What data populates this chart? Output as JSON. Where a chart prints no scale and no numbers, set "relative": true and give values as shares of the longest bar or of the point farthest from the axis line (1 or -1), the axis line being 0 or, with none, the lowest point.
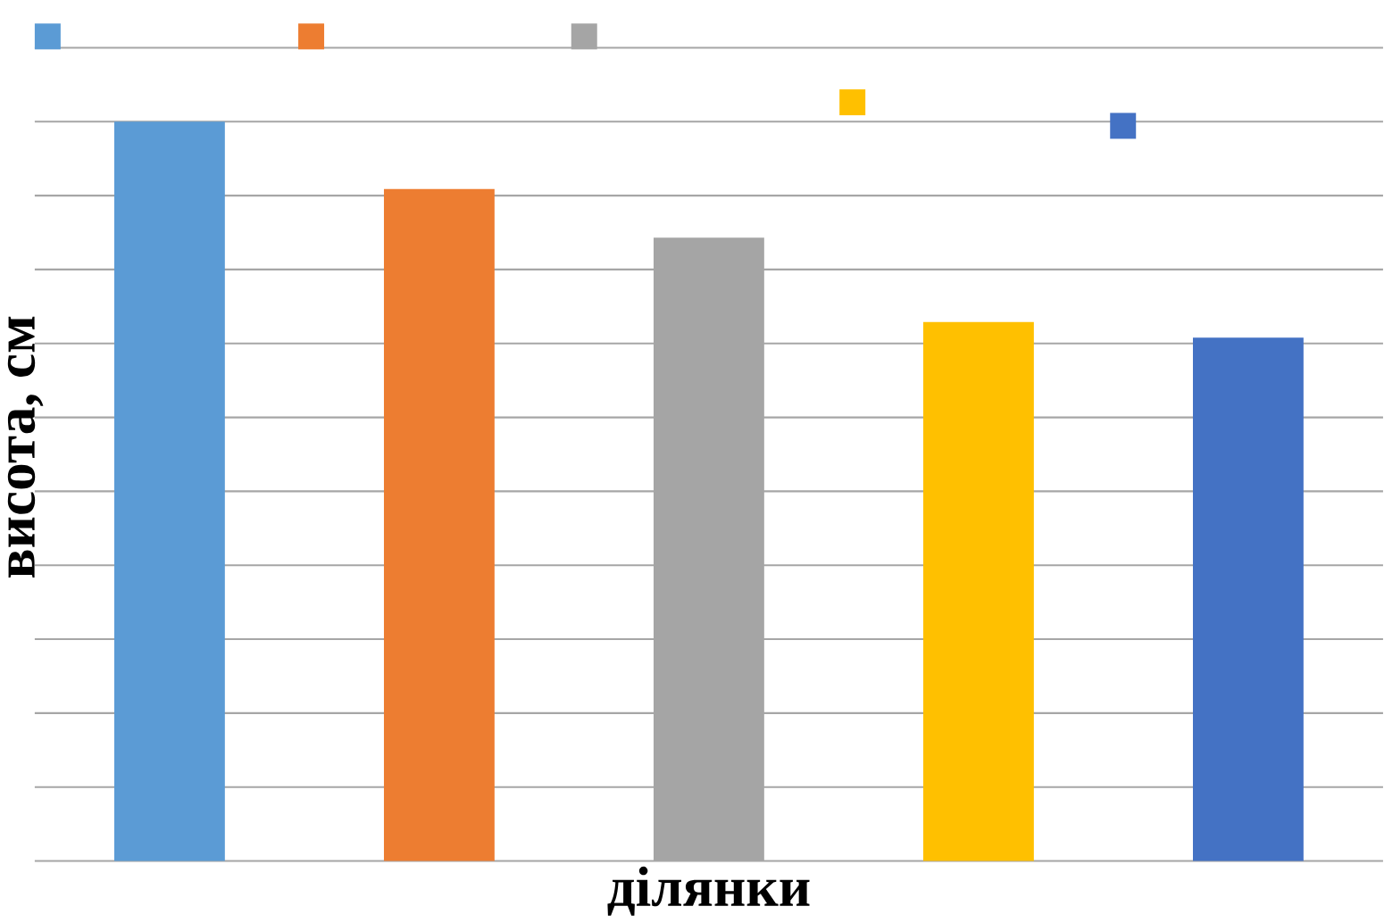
{
  "chart_data": {
    "type": "bar",
    "relative": true,
    "categories": [
      null,
      null,
      null,
      null,
      null
    ],
    "values": [
      1,
      0.909,
      0.843,
      0.729,
      0.708
    ],
    "colors": [
      "#5b9bd5",
      "#ed7d31",
      "#a5a5a5",
      "#ffc000",
      "#4472c4"
    ],
    "xlabel": "ділянки",
    "ylabel": "висота, см",
    "grid": "y"
  }
}
